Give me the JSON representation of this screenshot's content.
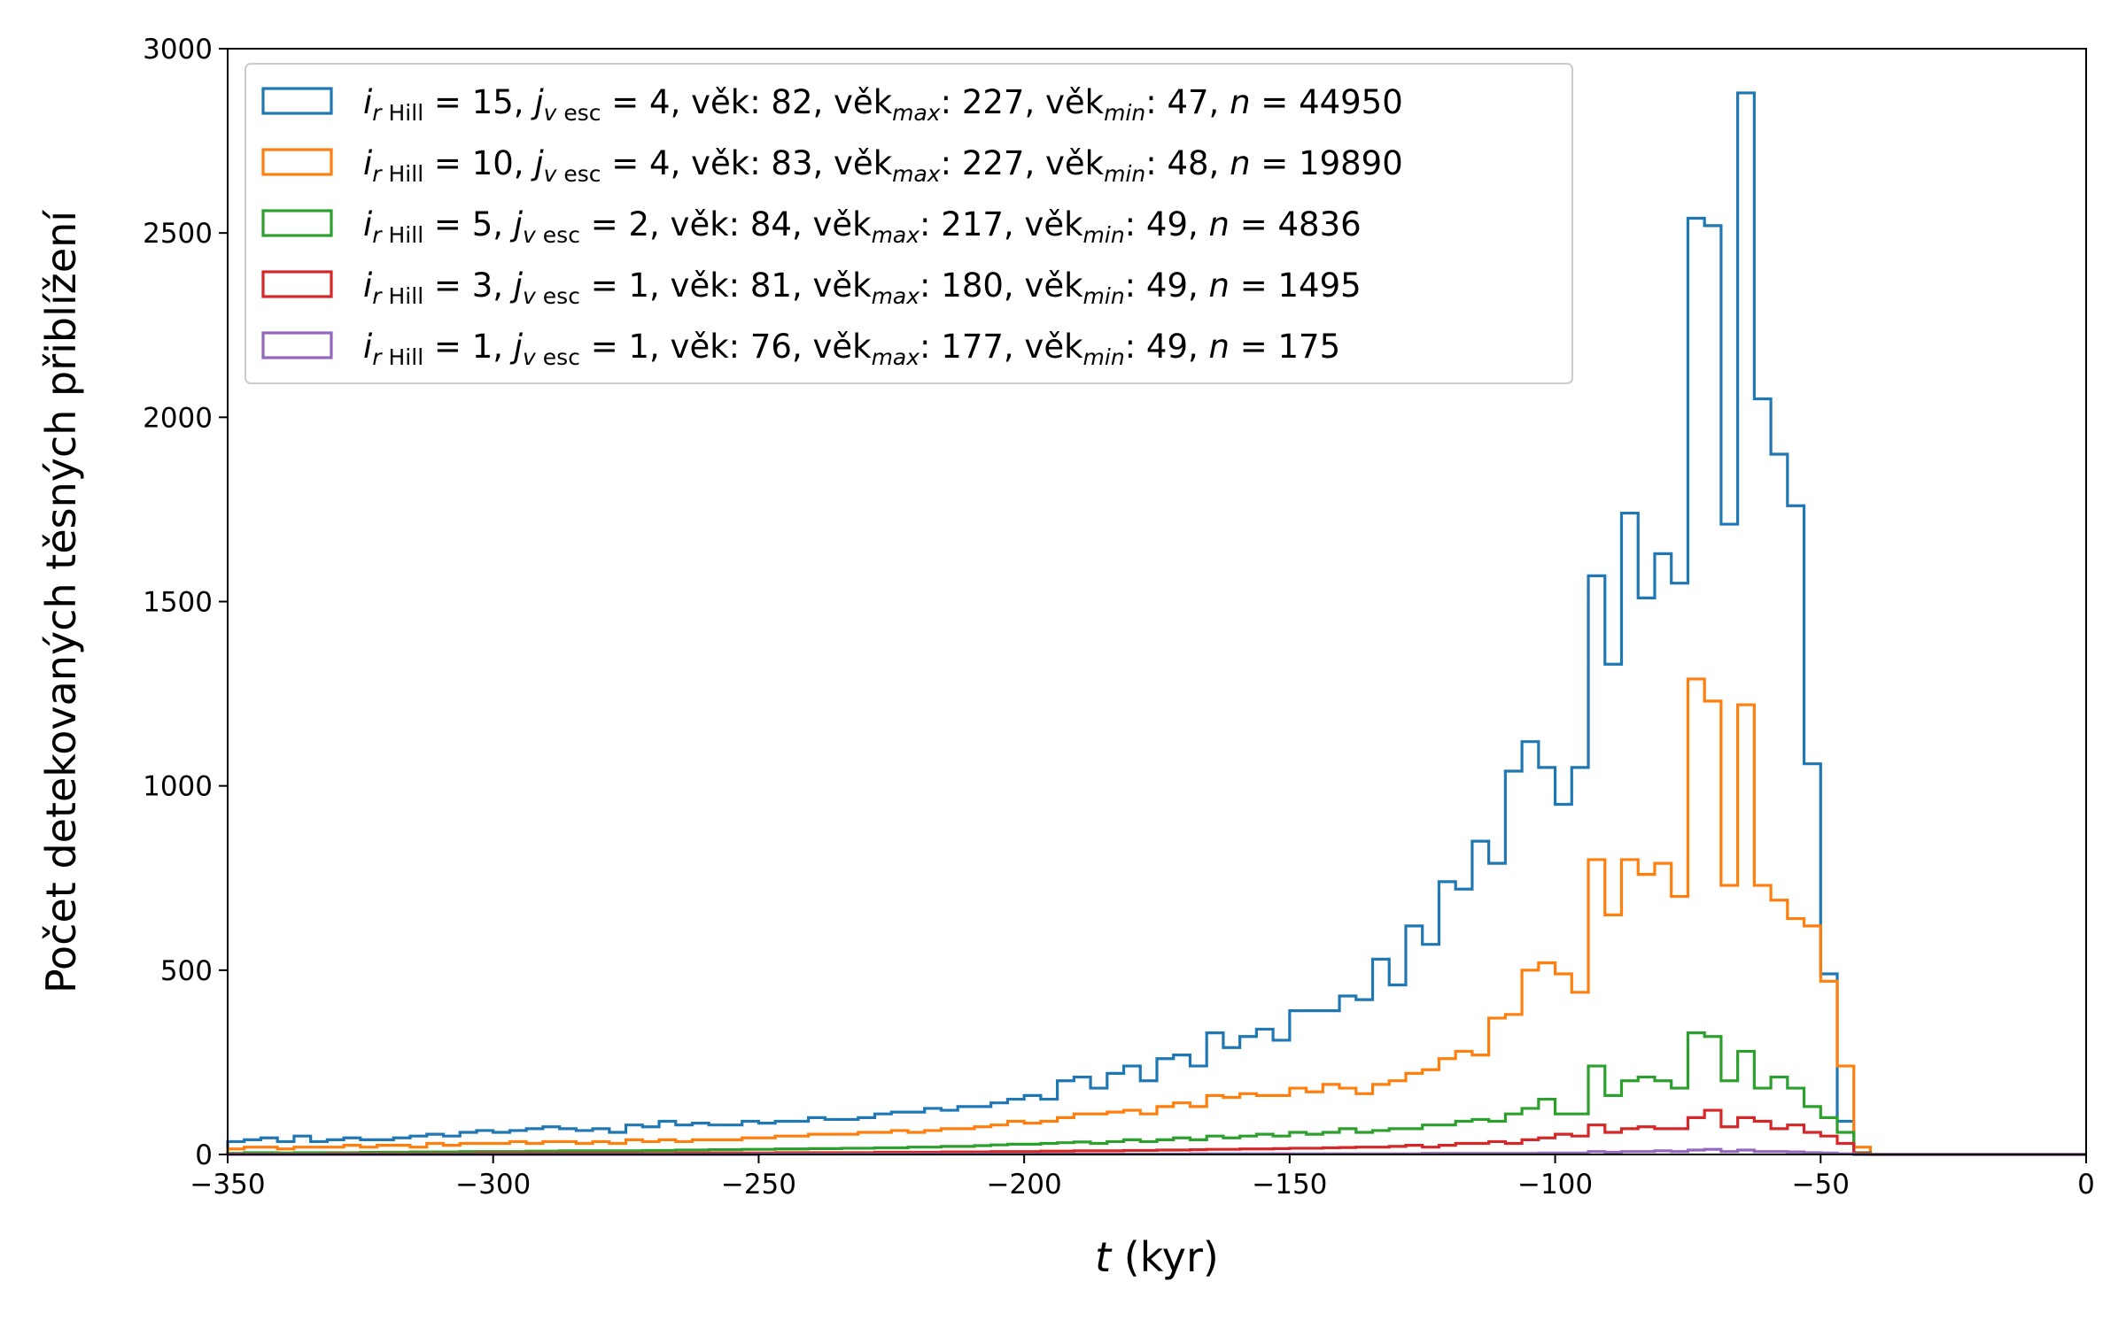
{
  "chart_data": {
    "type": "histogram",
    "xlabel_var": "t",
    "xlabel_unit": " (kyr)",
    "ylabel": "Počet detekovaných těsných přiblížení",
    "xlim": [
      -350,
      0
    ],
    "ylim": [
      0,
      3000
    ],
    "xticks": [
      -350,
      -300,
      -250,
      -200,
      -150,
      -100,
      -50,
      0
    ],
    "yticks": [
      0,
      500,
      1000,
      1500,
      2000,
      2500,
      3000
    ],
    "xtick_labels": [
      "−350",
      "−300",
      "−250",
      "−200",
      "−150",
      "−100",
      "−50",
      "0"
    ],
    "ytick_labels": [
      "0",
      "500",
      "1000",
      "1500",
      "2000",
      "2500",
      "3000"
    ],
    "bin_edges_start": -350,
    "bin_width": 3.125,
    "grid": false,
    "legend_position": "upper-left",
    "series": [
      {
        "color": "#1f77b4",
        "legend": {
          "i": "15",
          "j": "4",
          "vek": "82",
          "vek_max": "227",
          "vek_min": "47",
          "n": "44950"
        },
        "values": [
          35,
          40,
          45,
          35,
          50,
          35,
          40,
          45,
          40,
          40,
          45,
          50,
          55,
          50,
          60,
          65,
          60,
          65,
          70,
          75,
          70,
          65,
          70,
          60,
          80,
          75,
          90,
          80,
          85,
          80,
          80,
          90,
          85,
          90,
          90,
          100,
          95,
          95,
          100,
          110,
          115,
          115,
          125,
          120,
          130,
          130,
          140,
          150,
          160,
          150,
          200,
          210,
          180,
          220,
          240,
          200,
          260,
          270,
          240,
          330,
          290,
          320,
          340,
          310,
          390,
          390,
          390,
          430,
          420,
          530,
          460,
          620,
          570,
          740,
          720,
          850,
          790,
          1040,
          1120,
          1050,
          950,
          1050,
          1570,
          1330,
          1740,
          1510,
          1630,
          1550,
          2540,
          2520,
          1710,
          2880,
          2050,
          1900,
          1760,
          1060,
          490,
          90,
          0,
          0,
          0,
          0,
          0,
          0,
          0,
          0,
          0,
          0,
          0,
          0,
          0,
          0
        ]
      },
      {
        "color": "#ff7f0e",
        "legend": {
          "i": "10",
          "j": "4",
          "vek": "83",
          "vek_max": "227",
          "vek_min": "48",
          "n": "19890"
        },
        "values": [
          15,
          20,
          20,
          15,
          20,
          20,
          20,
          25,
          20,
          25,
          25,
          20,
          30,
          25,
          30,
          30,
          30,
          35,
          30,
          35,
          35,
          30,
          35,
          30,
          40,
          35,
          40,
          35,
          40,
          40,
          40,
          45,
          45,
          50,
          50,
          55,
          55,
          55,
          60,
          60,
          65,
          60,
          65,
          70,
          70,
          75,
          80,
          90,
          85,
          90,
          100,
          110,
          110,
          115,
          120,
          110,
          130,
          140,
          130,
          160,
          155,
          165,
          160,
          160,
          180,
          170,
          190,
          180,
          165,
          190,
          200,
          220,
          230,
          260,
          280,
          270,
          370,
          380,
          500,
          520,
          490,
          440,
          800,
          650,
          800,
          760,
          790,
          700,
          1290,
          1230,
          730,
          1220,
          730,
          690,
          640,
          620,
          470,
          240,
          20,
          0,
          0,
          0,
          0,
          0,
          0,
          0,
          0,
          0,
          0,
          0,
          0,
          0
        ]
      },
      {
        "color": "#2ca02c",
        "legend": {
          "i": " 5",
          "j": "2",
          "vek": "84",
          "vek_max": "217",
          "vek_min": "49",
          "n": "4836"
        },
        "values": [
          3,
          5,
          5,
          4,
          5,
          5,
          5,
          5,
          6,
          6,
          6,
          7,
          7,
          7,
          8,
          8,
          8,
          8,
          9,
          9,
          10,
          10,
          10,
          10,
          10,
          11,
          11,
          12,
          12,
          13,
          13,
          14,
          14,
          15,
          15,
          16,
          16,
          17,
          17,
          18,
          18,
          20,
          20,
          22,
          22,
          24,
          26,
          28,
          28,
          30,
          32,
          34,
          30,
          35,
          40,
          35,
          40,
          45,
          40,
          50,
          45,
          50,
          55,
          50,
          60,
          55,
          60,
          70,
          60,
          65,
          70,
          70,
          80,
          80,
          90,
          95,
          90,
          110,
          125,
          150,
          110,
          110,
          240,
          160,
          200,
          210,
          200,
          180,
          330,
          320,
          200,
          280,
          180,
          210,
          180,
          130,
          100,
          60,
          5,
          0,
          0,
          0,
          0,
          0,
          0,
          0,
          0,
          0,
          0,
          0,
          0,
          0
        ]
      },
      {
        "color": "#d62728",
        "legend": {
          "i": " 3",
          "j": "1",
          "vek": "81",
          "vek_max": "180",
          "vek_min": "49",
          "n": "1495"
        },
        "values": [
          1,
          1,
          1,
          1,
          1,
          1,
          2,
          2,
          2,
          2,
          2,
          2,
          2,
          2,
          2,
          3,
          3,
          3,
          3,
          3,
          3,
          3,
          3,
          3,
          3,
          3,
          3,
          4,
          4,
          4,
          4,
          4,
          4,
          5,
          5,
          5,
          5,
          5,
          5,
          6,
          6,
          6,
          6,
          7,
          7,
          7,
          8,
          8,
          8,
          9,
          9,
          10,
          10,
          10,
          11,
          11,
          12,
          12,
          13,
          14,
          14,
          15,
          15,
          16,
          17,
          17,
          18,
          19,
          20,
          20,
          22,
          25,
          20,
          25,
          30,
          30,
          35,
          30,
          40,
          45,
          55,
          50,
          80,
          60,
          70,
          75,
          70,
          70,
          100,
          120,
          75,
          100,
          90,
          70,
          80,
          60,
          50,
          30,
          3,
          0,
          0,
          0,
          0,
          0,
          0,
          0,
          0,
          0,
          0,
          0,
          0,
          0
        ]
      },
      {
        "color": "#9467bd",
        "legend": {
          "i": " 1",
          "j": "1",
          "vek": "76",
          "vek_max": "177",
          "vek_min": "49",
          "n": "175"
        },
        "values": [
          0,
          0,
          0,
          0,
          0,
          0,
          0,
          0,
          0,
          0,
          0,
          0,
          0,
          0,
          0,
          0,
          0,
          0,
          0,
          0,
          0,
          0,
          0,
          0,
          0,
          0,
          0,
          0,
          0,
          0,
          0,
          0,
          1,
          1,
          1,
          1,
          1,
          1,
          1,
          1,
          1,
          1,
          1,
          1,
          1,
          1,
          1,
          1,
          1,
          1,
          1,
          1,
          1,
          1,
          1,
          1,
          1,
          1,
          2,
          2,
          2,
          2,
          2,
          2,
          2,
          2,
          2,
          2,
          2,
          2,
          2,
          2,
          3,
          3,
          3,
          3,
          3,
          3,
          3,
          4,
          4,
          4,
          8,
          6,
          8,
          8,
          10,
          8,
          12,
          14,
          8,
          12,
          8,
          8,
          7,
          5,
          4,
          2,
          0,
          0,
          0,
          0,
          0,
          0,
          0,
          0,
          0,
          0,
          0,
          0,
          0,
          0
        ]
      }
    ]
  }
}
